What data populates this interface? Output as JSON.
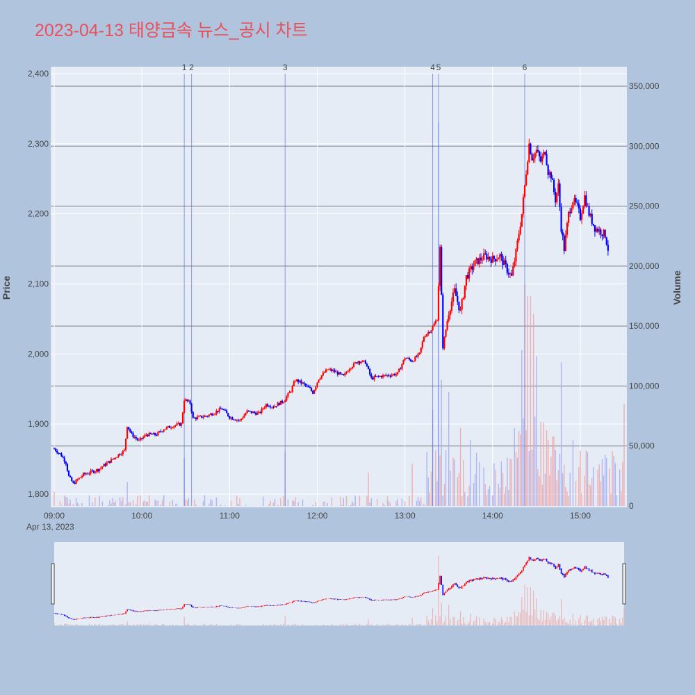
{
  "title": "2023-04-13 태양금속 뉴스_공시 차트",
  "colors": {
    "page_bg": "#b0c4de",
    "plot_bg": "#e5ecf6",
    "up": "#ff0000",
    "down": "#0000ff",
    "title": "#e8505b",
    "news_line": "#4a5fd6"
  },
  "chart_data": {
    "type": "candlestick",
    "date_label": "Apr 13, 2023",
    "x_range": [
      "09:00",
      "15:30"
    ],
    "x_ticks": [
      "09:00",
      "10:00",
      "11:00",
      "12:00",
      "13:00",
      "14:00",
      "15:00"
    ],
    "y_label": "Price",
    "y_range": [
      1780,
      2400
    ],
    "y_ticks": [
      1800,
      1900,
      2000,
      2100,
      2200,
      2300,
      2400
    ],
    "y_tick_labels": [
      "1,800",
      "1,900",
      "2,000",
      "2,100",
      "2,200",
      "2,300",
      "2,400"
    ],
    "y2_label": "Volume",
    "y2_range": [
      0,
      360000
    ],
    "y2_ticks": [
      0,
      50000,
      100000,
      150000,
      200000,
      250000,
      300000,
      350000
    ],
    "y2_tick_labels": [
      "0",
      "50,000",
      "100,000",
      "150,000",
      "200,000",
      "250,000",
      "300,000",
      "350,000"
    ],
    "news_markers": [
      {
        "label": "1",
        "time": "10:29"
      },
      {
        "label": "2",
        "time": "10:34"
      },
      {
        "label": "3",
        "time": "11:38"
      },
      {
        "label": "4",
        "time": "13:19"
      },
      {
        "label": "5",
        "time": "13:23"
      },
      {
        "label": "6",
        "time": "14:22"
      }
    ],
    "price_path": [
      [
        "09:00",
        1865
      ],
      [
        "09:05",
        1855
      ],
      [
        "09:08",
        1845
      ],
      [
        "09:10",
        1825
      ],
      [
        "09:13",
        1815
      ],
      [
        "09:20",
        1828
      ],
      [
        "09:30",
        1835
      ],
      [
        "09:40",
        1850
      ],
      [
        "09:45",
        1858
      ],
      [
        "09:48",
        1862
      ],
      [
        "09:50",
        1898
      ],
      [
        "09:53",
        1885
      ],
      [
        "09:58",
        1876
      ],
      [
        "10:03",
        1885
      ],
      [
        "10:10",
        1885
      ],
      [
        "10:15",
        1893
      ],
      [
        "10:22",
        1898
      ],
      [
        "10:27",
        1900
      ],
      [
        "10:29",
        1935
      ],
      [
        "10:33",
        1930
      ],
      [
        "10:35",
        1908
      ],
      [
        "10:45",
        1912
      ],
      [
        "10:55",
        1922
      ],
      [
        "11:00",
        1910
      ],
      [
        "11:07",
        1905
      ],
      [
        "11:12",
        1918
      ],
      [
        "11:20",
        1915
      ],
      [
        "11:25",
        1928
      ],
      [
        "11:30",
        1925
      ],
      [
        "11:37",
        1933
      ],
      [
        "11:42",
        1948
      ],
      [
        "11:45",
        1963
      ],
      [
        "11:50",
        1958
      ],
      [
        "11:55",
        1950
      ],
      [
        "11:57",
        1945
      ],
      [
        "12:01",
        1965
      ],
      [
        "12:07",
        1978
      ],
      [
        "12:12",
        1975
      ],
      [
        "12:18",
        1968
      ],
      [
        "12:22",
        1980
      ],
      [
        "12:28",
        1990
      ],
      [
        "12:33",
        1988
      ],
      [
        "12:37",
        1965
      ],
      [
        "12:42",
        1968
      ],
      [
        "12:50",
        1970
      ],
      [
        "12:55",
        1972
      ],
      [
        "13:00",
        1995
      ],
      [
        "13:05",
        1990
      ],
      [
        "13:10",
        2000
      ],
      [
        "13:13",
        2025
      ],
      [
        "13:18",
        2035
      ],
      [
        "13:22",
        2050
      ],
      [
        "13:24",
        2150
      ],
      [
        "13:26",
        2010
      ],
      [
        "13:30",
        2060
      ],
      [
        "13:34",
        2090
      ],
      [
        "13:38",
        2060
      ],
      [
        "13:42",
        2110
      ],
      [
        "13:48",
        2130
      ],
      [
        "13:55",
        2140
      ],
      [
        "14:00",
        2135
      ],
      [
        "14:05",
        2140
      ],
      [
        "14:10",
        2120
      ],
      [
        "14:13",
        2110
      ],
      [
        "14:16",
        2145
      ],
      [
        "14:20",
        2200
      ],
      [
        "14:23",
        2260
      ],
      [
        "14:25",
        2300
      ],
      [
        "14:27",
        2280
      ],
      [
        "14:30",
        2290
      ],
      [
        "14:33",
        2275
      ],
      [
        "14:36",
        2290
      ],
      [
        "14:38",
        2260
      ],
      [
        "14:40",
        2255
      ],
      [
        "14:43",
        2220
      ],
      [
        "14:45",
        2240
      ],
      [
        "14:47",
        2180
      ],
      [
        "14:49",
        2150
      ],
      [
        "14:52",
        2200
      ],
      [
        "14:55",
        2220
      ],
      [
        "14:58",
        2210
      ],
      [
        "15:00",
        2195
      ],
      [
        "15:03",
        2225
      ],
      [
        "15:06",
        2200
      ],
      [
        "15:10",
        2180
      ],
      [
        "15:14",
        2175
      ],
      [
        "15:17",
        2170
      ],
      [
        "15:19",
        2150
      ]
    ],
    "volume_spikes": [
      [
        "09:00",
        12000
      ],
      [
        "09:50",
        20000
      ],
      [
        "10:29",
        40000
      ],
      [
        "11:38",
        45000
      ],
      [
        "12:35",
        28000
      ],
      [
        "13:05",
        35000
      ],
      [
        "13:15",
        45000
      ],
      [
        "13:19",
        80000
      ],
      [
        "13:23",
        320000
      ],
      [
        "13:25",
        105000
      ],
      [
        "13:30",
        95000
      ],
      [
        "13:38",
        65000
      ],
      [
        "13:45",
        55000
      ],
      [
        "14:02",
        30000
      ],
      [
        "14:15",
        65000
      ],
      [
        "14:20",
        130000
      ],
      [
        "14:22",
        185000
      ],
      [
        "14:24",
        175000
      ],
      [
        "14:26",
        175000
      ],
      [
        "14:28",
        160000
      ],
      [
        "14:30",
        125000
      ],
      [
        "14:33",
        70000
      ],
      [
        "14:38",
        55000
      ],
      [
        "14:47",
        120000
      ],
      [
        "14:55",
        55000
      ],
      [
        "15:05",
        45000
      ],
      [
        "15:18",
        40000
      ],
      [
        "15:30",
        85000
      ]
    ]
  }
}
